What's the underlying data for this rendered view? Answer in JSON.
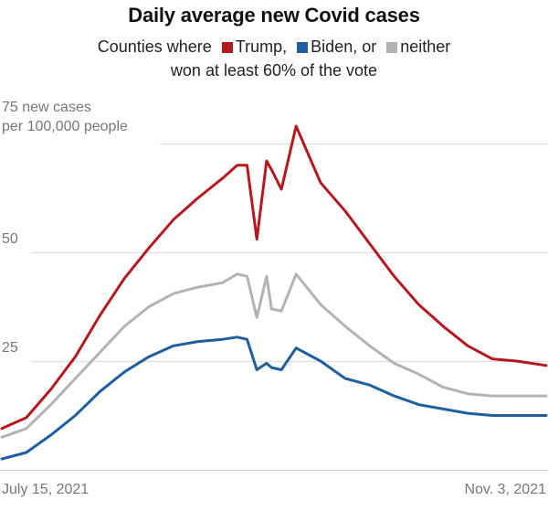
{
  "header": {
    "title": "Daily average new Covid cases",
    "legend_prefix": "Counties where",
    "legend_items": [
      {
        "label": "Trump,",
        "color": "#b5191f"
      },
      {
        "label": "Biden, or",
        "color": "#1f5f9e"
      },
      {
        "label": "neither",
        "color": "#b3b3b3"
      }
    ],
    "legend_line2": "won at least 60% of the vote"
  },
  "axis": {
    "y_label_line1": "75 new cases",
    "y_label_line2": "per 100,000 people",
    "y_ticks": [
      "25",
      "50"
    ],
    "x_start": "July 15, 2021",
    "x_end": "Nov. 3, 2021"
  },
  "chart_data": {
    "type": "line",
    "title": "Daily average new Covid cases",
    "subtitle": "Counties where Trump, Biden, or neither won at least 60% of the vote",
    "xlabel": "",
    "ylabel": "new cases per 100,000 people",
    "x_range": [
      "2021-07-15",
      "2021-11-03"
    ],
    "ylim": [
      0,
      75
    ],
    "yticks": [
      25,
      50,
      75
    ],
    "grid": true,
    "x": [
      "2021-07-15",
      "2021-07-20",
      "2021-07-25",
      "2021-07-30",
      "2021-08-04",
      "2021-08-09",
      "2021-08-14",
      "2021-08-19",
      "2021-08-24",
      "2021-08-29",
      "2021-09-01",
      "2021-09-03",
      "2021-09-05",
      "2021-09-07",
      "2021-09-08",
      "2021-09-10",
      "2021-09-13",
      "2021-09-18",
      "2021-09-23",
      "2021-09-28",
      "2021-10-03",
      "2021-10-08",
      "2021-10-13",
      "2021-10-18",
      "2021-10-23",
      "2021-10-28",
      "2021-11-03"
    ],
    "series": [
      {
        "name": "Trump",
        "color": "#b5191f",
        "values": [
          9.5,
          12,
          18.5,
          26,
          35.5,
          44,
          51,
          57.5,
          62.5,
          67,
          70,
          70,
          53,
          71,
          69,
          64.5,
          79,
          66,
          59.5,
          52,
          44.5,
          38,
          33,
          28.5,
          25.5,
          25,
          24
        ]
      },
      {
        "name": "Biden",
        "color": "#1f5f9e",
        "values": [
          2.5,
          4,
          8,
          12.5,
          18,
          22.5,
          26,
          28.5,
          29.5,
          30,
          30.5,
          30,
          23,
          24.5,
          23.5,
          23,
          28,
          25,
          21,
          19.5,
          17,
          15,
          14,
          13,
          12.5,
          12.5,
          12.5
        ]
      },
      {
        "name": "neither",
        "color": "#b3b3b3",
        "values": [
          7.5,
          9.5,
          15,
          21,
          27,
          33,
          37.5,
          40.5,
          42,
          43,
          45,
          44.5,
          35,
          44.5,
          37,
          36.5,
          45,
          38,
          33,
          28.5,
          24.5,
          22,
          19,
          17.5,
          17,
          17,
          17
        ]
      }
    ]
  }
}
